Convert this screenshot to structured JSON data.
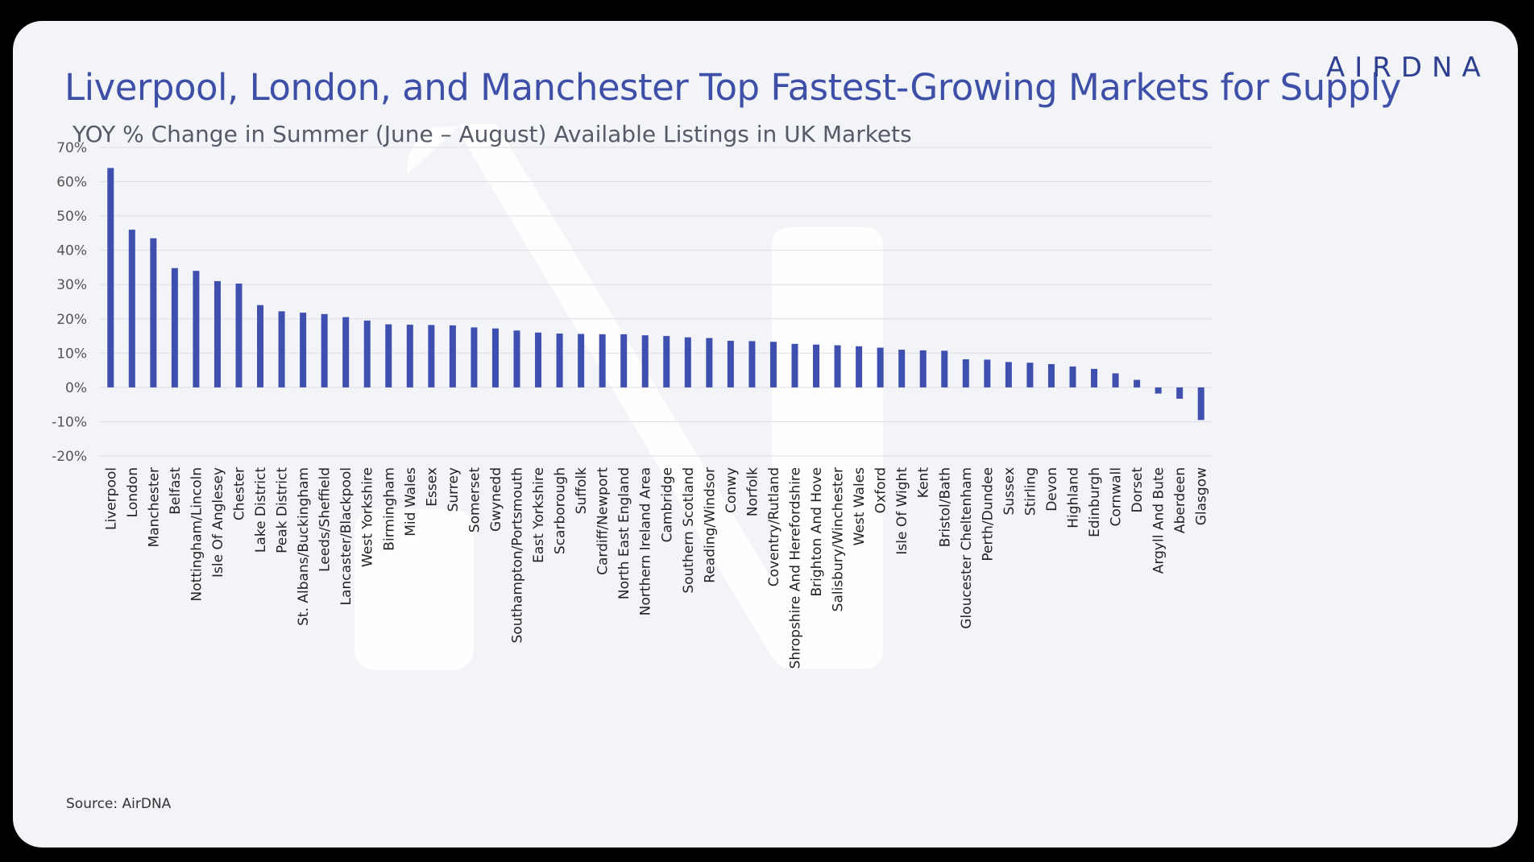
{
  "header": {
    "title": "Liverpool, London, and Manchester Top Fastest-Growing Markets for Supply",
    "subtitle": "YOY % Change in Summer (June – August) Available Listings in UK Markets",
    "logo": "AIRDNA"
  },
  "footer": {
    "source": "Source: AirDNA"
  },
  "colors": {
    "bar": "#3e4fb0",
    "grid": "#dedfe6",
    "title": "#3e4fa8"
  },
  "chart_data": {
    "type": "bar",
    "title": "Liverpool, London, and Manchester Top Fastest-Growing Markets for Supply",
    "subtitle": "YOY % Change in Summer (June – August) Available Listings in UK Markets",
    "xlabel": "",
    "ylabel": "",
    "ylim": [
      -20,
      70
    ],
    "yticks": [
      70,
      60,
      50,
      40,
      30,
      20,
      10,
      0,
      -10,
      -20
    ],
    "ytick_labels": [
      "70%",
      "60%",
      "50%",
      "40%",
      "30%",
      "20%",
      "10%",
      "0%",
      "-10%",
      "-20%"
    ],
    "grid": true,
    "categories": [
      "Liverpool",
      "London",
      "Manchester",
      "Belfast",
      "Nottingham/Lincoln",
      "Isle Of Anglesey",
      "Chester",
      "Lake District",
      "Peak District",
      "St. Albans/Buckingham",
      "Leeds/Sheffield",
      "Lancaster/Blackpool",
      "West Yorkshire",
      "Birmingham",
      "Mid Wales",
      "Essex",
      "Surrey",
      "Somerset",
      "Gwynedd",
      "Southampton/Portsmouth",
      "East Yorkshire",
      "Scarborough",
      "Suffolk",
      "Cardiff/Newport",
      "North East England",
      "Northern Ireland Area",
      "Cambridge",
      "Southern Scotland",
      "Reading/Windsor",
      "Conwy",
      "Norfolk",
      "Coventry/Rutland",
      "Shropshire And Herefordshire",
      "Brighton And Hove",
      "Salisbury/Winchester",
      "West Wales",
      "Oxford",
      "Isle Of Wight",
      "Kent",
      "Bristol/Bath",
      "Gloucester Cheltenham",
      "Perth/Dundee",
      "Sussex",
      "Stirling",
      "Devon",
      "Highland",
      "Edinburgh",
      "Cornwall",
      "Dorset",
      "Argyll And Bute",
      "Aberdeen",
      "Glasgow"
    ],
    "values": [
      64,
      46,
      43.5,
      34.8,
      34,
      31,
      30.3,
      24,
      22.2,
      21.8,
      21.4,
      20.5,
      19.5,
      18.4,
      18.3,
      18.2,
      18.1,
      17.5,
      17.2,
      16.6,
      16,
      15.7,
      15.6,
      15.5,
      15.5,
      15.2,
      15,
      14.6,
      14.4,
      13.6,
      13.5,
      13.3,
      12.7,
      12.5,
      12.3,
      12,
      11.6,
      11,
      10.8,
      10.7,
      8.2,
      8.1,
      7.4,
      7.2,
      6.8,
      6.1,
      5.4,
      4.1,
      2.2,
      -1.8,
      -3.3,
      -9.5
    ]
  }
}
